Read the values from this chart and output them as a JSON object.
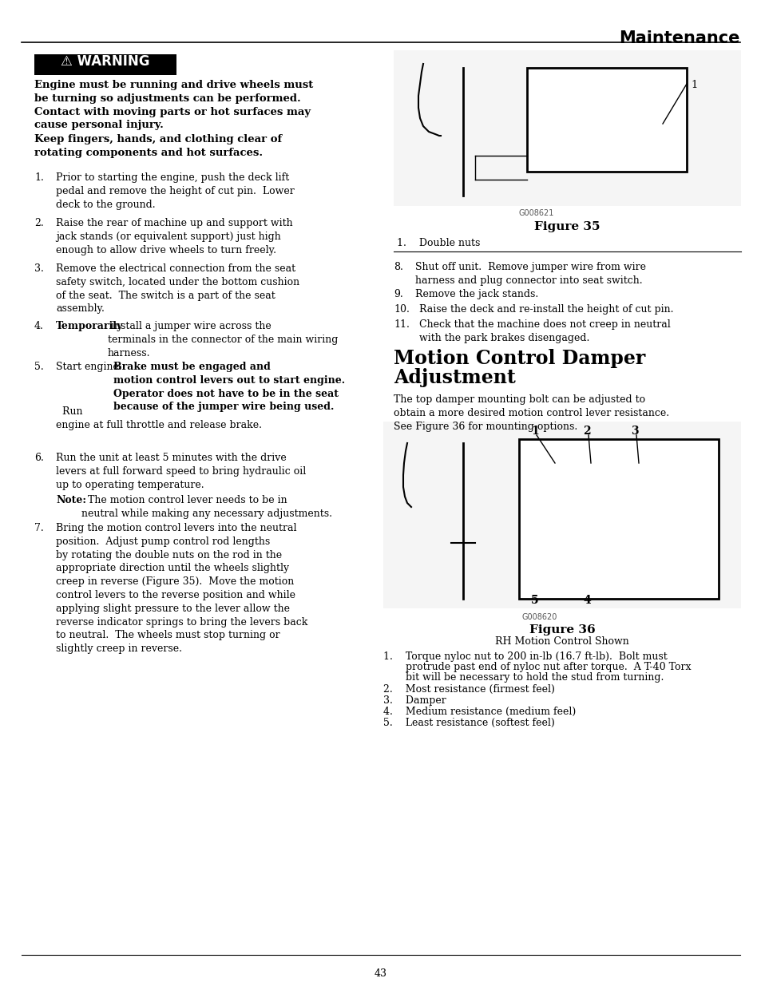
{
  "page_title": "Maintenance",
  "page_number": "43",
  "warning_title": "⚠ WARNING",
  "warning_body_bold": "Engine must be running and drive wheels must\nbe turning so adjustments can be performed.\nContact with moving parts or hot surfaces may\ncause personal injury.",
  "warning_body_bold2": "Keep fingers, hands, and clothing clear of\nrotating components and hot surfaces.",
  "step1": "Prior to starting the engine, push the deck lift\npedal and remove the height of cut pin.  Lower\ndeck to the ground.",
  "step2": "Raise the rear of machine up and support with\njack stands (or equivalent support) just high\nenough to allow drive wheels to turn freely.",
  "step3": "Remove the electrical connection from the seat\nsafety switch, located under the bottom cushion\nof the seat.  The switch is a part of the seat\nassembly.",
  "step4_bold": "Temporarily",
  "step4_rest": " install a jumper wire across the\nterminals in the connector of the main wiring\nharness.",
  "step5_pre": "Start engine.  ",
  "step5_bold": "Brake must be engaged and\nmotion control levers out to start engine.\nOperator does not have to be in the seat\nbecause of the jumper wire being used.",
  "step5_post": "  Run\nengine at full throttle and release brake.",
  "step6": "Run the unit at least 5 minutes with the drive\nlevers at full forward speed to bring hydraulic oil\nup to operating temperature.",
  "note_bold": "Note:",
  "note_rest": "  The motion control lever needs to be in\nneutral while making any necessary adjustments.",
  "step7": "Bring the motion control levers into the neutral\nposition.  Adjust pump control rod lengths\nby rotating the double nuts on the rod in the\nappropriate direction until the wheels slightly\ncreep in reverse (Figure 35).  Move the motion\ncontrol levers to the reverse position and while\napplying slight pressure to the lever allow the\nreverse indicator springs to bring the levers back\nto neutral.  The wheels must stop turning or\nslightly creep in reverse.",
  "step8": "Shut off unit.  Remove jumper wire from wire\nharness and plug connector into seat switch.",
  "step9": "Remove the jack stands.",
  "step10": "Raise the deck and re-install the height of cut pin.",
  "step11": "Check that the machine does not creep in neutral\nwith the park brakes disengaged.",
  "section_title_line1": "Motion Control Damper",
  "section_title_line2": "Adjustment",
  "section_intro": "The top damper mounting bolt can be adjusted to\nobtain a more desired motion control lever resistance.\nSee Figure 36 for mounting options.",
  "fig35_code": "G008621",
  "fig35_caption": "Figure 35",
  "fig35_item1": "1.    Double nuts",
  "fig36_code": "G008620",
  "fig36_caption": "Figure 36",
  "fig36_subcap": "RH Motion Control Shown",
  "fig36_item1a": "1.    Torque nyloc nut to 200 in-lb (16.7 ft-lb).  Bolt must",
  "fig36_item1b": "       protrude past end of nyloc nut after torque.  A T-40 Torx",
  "fig36_item1c": "       bit will be necessary to hold the stud from turning.",
  "fig36_item2": "2.    Most resistance (firmest feel)",
  "fig36_item3": "3.    Damper",
  "fig36_item4": "4.    Medium resistance (medium feel)",
  "fig36_item5": "5.    Least resistance (softest feel)",
  "bg_color": "#ffffff",
  "text_color": "#000000",
  "warning_bg": "#000000",
  "warning_text_color": "#ffffff"
}
